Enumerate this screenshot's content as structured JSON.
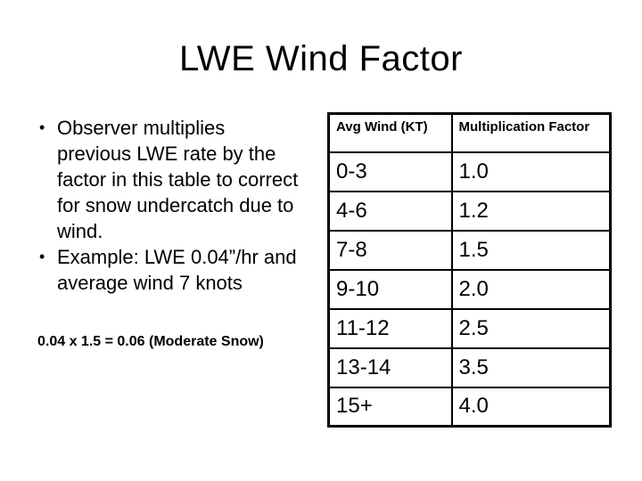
{
  "slide": {
    "title": "LWE Wind Factor",
    "bullet_glyph": "•",
    "bullets": [
      "Observer multiplies previous LWE rate by the factor in this table to correct for snow undercatch due to wind.",
      "Example: LWE 0.04”/hr and average wind 7 knots"
    ],
    "note": "0.04 x 1.5 = 0.06 (Moderate Snow)",
    "table": {
      "headers": [
        "Avg Wind (KT)",
        "Multiplication Factor"
      ],
      "rows": [
        [
          "0-3",
          "1.0"
        ],
        [
          "4-6",
          "1.2"
        ],
        [
          "7-8",
          "1.5"
        ],
        [
          "9-10",
          "2.0"
        ],
        [
          "11-12",
          "2.5"
        ],
        [
          "13-14",
          "3.5"
        ],
        [
          "15+",
          "4.0"
        ]
      ]
    },
    "colors": {
      "background": "#ffffff",
      "text": "#000000",
      "table_border": "#000000"
    }
  }
}
